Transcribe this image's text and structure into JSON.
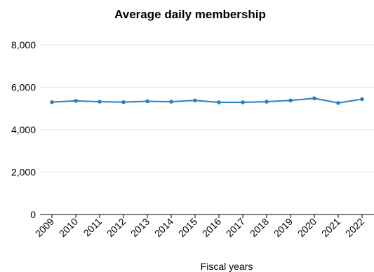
{
  "chart_data": {
    "type": "line",
    "title": "Average daily membership",
    "xlabel": "Fiscal years",
    "ylabel": "",
    "ylim": [
      0,
      8000
    ],
    "yticks": [
      0,
      2000,
      4000,
      6000,
      8000
    ],
    "ytick_labels": [
      "0",
      "2,000",
      "4,000",
      "6,000",
      "8,000"
    ],
    "grid": "horizontal",
    "legend": "none",
    "categories": [
      "2009",
      "2010",
      "2011",
      "2012",
      "2013",
      "2014",
      "2015",
      "2016",
      "2017",
      "2018",
      "2019",
      "2020",
      "2021",
      "2022"
    ],
    "series": [
      {
        "values": [
          5300,
          5360,
          5320,
          5300,
          5340,
          5320,
          5380,
          5290,
          5290,
          5320,
          5380,
          5480,
          5260,
          5440
        ],
        "color": "#2e7ebc"
      }
    ]
  }
}
